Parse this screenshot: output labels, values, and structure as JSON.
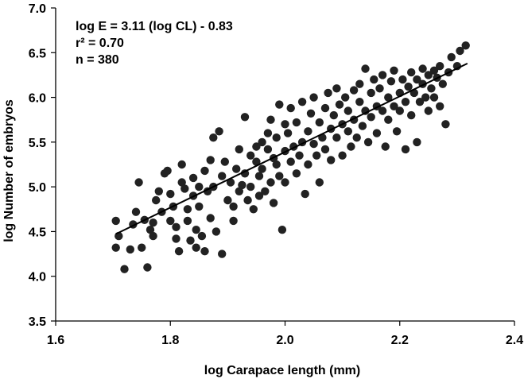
{
  "chart_data": {
    "type": "scatter",
    "title": "",
    "xlabel": "log Carapace length (mm)",
    "ylabel": "log Number of embryos",
    "xlim": [
      1.6,
      2.4
    ],
    "ylim": [
      3.5,
      7.0
    ],
    "xticks": [
      1.6,
      1.8,
      2.0,
      2.2,
      2.4
    ],
    "yticks": [
      3.5,
      4.0,
      4.5,
      5.0,
      5.5,
      6.0,
      6.5,
      7.0
    ],
    "xtick_labels": [
      "1.6",
      "1.8",
      "2.0",
      "2.2",
      "2.4"
    ],
    "ytick_labels": [
      "3.5",
      "4.0",
      "4.5",
      "5.0",
      "5.5",
      "6.0",
      "6.5",
      "7.0"
    ],
    "grid": false,
    "marker_color": "#222222",
    "annotations": [
      "log E = 3.11 (log CL) - 0.83",
      "r² = 0.70",
      "n = 380"
    ],
    "fit_line": {
      "slope": 3.11,
      "intercept": -0.83,
      "x_range": [
        1.705,
        2.318
      ]
    },
    "points": [
      [
        1.705,
        4.62
      ],
      [
        1.71,
        4.45
      ],
      [
        1.705,
        4.32
      ],
      [
        1.72,
        4.08
      ],
      [
        1.73,
        4.3
      ],
      [
        1.735,
        4.58
      ],
      [
        1.74,
        4.72
      ],
      [
        1.745,
        5.05
      ],
      [
        1.75,
        4.32
      ],
      [
        1.755,
        4.63
      ],
      [
        1.76,
        4.1
      ],
      [
        1.765,
        4.52
      ],
      [
        1.77,
        4.45
      ],
      [
        1.77,
        4.6
      ],
      [
        1.775,
        4.85
      ],
      [
        1.78,
        4.95
      ],
      [
        1.785,
        4.72
      ],
      [
        1.79,
        5.15
      ],
      [
        1.795,
        5.18
      ],
      [
        1.8,
        4.92
      ],
      [
        1.8,
        4.62
      ],
      [
        1.805,
        4.78
      ],
      [
        1.81,
        4.55
      ],
      [
        1.81,
        4.42
      ],
      [
        1.815,
        4.28
      ],
      [
        1.82,
        5.05
      ],
      [
        1.82,
        5.25
      ],
      [
        1.825,
        4.98
      ],
      [
        1.83,
        4.75
      ],
      [
        1.83,
        4.62
      ],
      [
        1.835,
        4.4
      ],
      [
        1.84,
        5.1
      ],
      [
        1.84,
        4.9
      ],
      [
        1.845,
        4.52
      ],
      [
        1.845,
        4.32
      ],
      [
        1.85,
        5.0
      ],
      [
        1.85,
        4.78
      ],
      [
        1.855,
        4.45
      ],
      [
        1.86,
        4.28
      ],
      [
        1.86,
        5.18
      ],
      [
        1.865,
        4.95
      ],
      [
        1.87,
        4.65
      ],
      [
        1.87,
        5.3
      ],
      [
        1.875,
        5.55
      ],
      [
        1.875,
        5.0
      ],
      [
        1.88,
        4.5
      ],
      [
        1.885,
        5.62
      ],
      [
        1.89,
        4.25
      ],
      [
        1.89,
        5.12
      ],
      [
        1.895,
        5.28
      ],
      [
        1.9,
        4.85
      ],
      [
        1.905,
        5.05
      ],
      [
        1.91,
        4.62
      ],
      [
        1.91,
        4.78
      ],
      [
        1.915,
        5.2
      ],
      [
        1.92,
        4.95
      ],
      [
        1.92,
        5.42
      ],
      [
        1.925,
        5.02
      ],
      [
        1.93,
        5.78
      ],
      [
        1.93,
        5.15
      ],
      [
        1.935,
        4.85
      ],
      [
        1.94,
        5.35
      ],
      [
        1.94,
        5.0
      ],
      [
        1.945,
        4.75
      ],
      [
        1.95,
        5.28
      ],
      [
        1.95,
        5.45
      ],
      [
        1.955,
        4.9
      ],
      [
        1.955,
        5.12
      ],
      [
        1.96,
        5.5
      ],
      [
        1.96,
        5.2
      ],
      [
        1.965,
        4.95
      ],
      [
        1.97,
        5.42
      ],
      [
        1.97,
        5.6
      ],
      [
        1.975,
        5.05
      ],
      [
        1.975,
        5.75
      ],
      [
        1.98,
        5.32
      ],
      [
        1.98,
        4.82
      ],
      [
        1.985,
        5.55
      ],
      [
        1.985,
        5.25
      ],
      [
        1.99,
        5.92
      ],
      [
        1.99,
        5.12
      ],
      [
        1.995,
        4.52
      ],
      [
        2.0,
        5.4
      ],
      [
        2.0,
        5.7
      ],
      [
        2.0,
        5.05
      ],
      [
        2.005,
        5.6
      ],
      [
        2.01,
        5.28
      ],
      [
        2.01,
        5.88
      ],
      [
        2.015,
        5.45
      ],
      [
        2.02,
        5.15
      ],
      [
        2.02,
        5.72
      ],
      [
        2.025,
        5.35
      ],
      [
        2.03,
        5.95
      ],
      [
        2.03,
        5.5
      ],
      [
        2.035,
        4.92
      ],
      [
        2.04,
        5.62
      ],
      [
        2.04,
        5.25
      ],
      [
        2.045,
        5.82
      ],
      [
        2.05,
        5.48
      ],
      [
        2.05,
        6.0
      ],
      [
        2.055,
        5.35
      ],
      [
        2.06,
        5.72
      ],
      [
        2.06,
        5.05
      ],
      [
        2.065,
        5.55
      ],
      [
        2.07,
        5.88
      ],
      [
        2.07,
        5.42
      ],
      [
        2.075,
        6.05
      ],
      [
        2.08,
        5.65
      ],
      [
        2.08,
        5.3
      ],
      [
        2.085,
        5.8
      ],
      [
        2.09,
        5.55
      ],
      [
        2.09,
        6.1
      ],
      [
        2.095,
        5.92
      ],
      [
        2.1,
        5.7
      ],
      [
        2.1,
        5.35
      ],
      [
        2.105,
        6.0
      ],
      [
        2.11,
        5.62
      ],
      [
        2.11,
        5.85
      ],
      [
        2.115,
        5.45
      ],
      [
        2.12,
        6.08
      ],
      [
        2.12,
        5.75
      ],
      [
        2.125,
        5.55
      ],
      [
        2.13,
        5.95
      ],
      [
        2.13,
        6.15
      ],
      [
        2.135,
        5.68
      ],
      [
        2.14,
        6.32
      ],
      [
        2.14,
        5.85
      ],
      [
        2.145,
        5.5
      ],
      [
        2.15,
        6.05
      ],
      [
        2.15,
        5.78
      ],
      [
        2.155,
        6.2
      ],
      [
        2.16,
        5.9
      ],
      [
        2.16,
        5.6
      ],
      [
        2.165,
        6.1
      ],
      [
        2.17,
        5.85
      ],
      [
        2.17,
        6.25
      ],
      [
        2.175,
        5.45
      ],
      [
        2.18,
        6.0
      ],
      [
        2.18,
        5.75
      ],
      [
        2.185,
        6.18
      ],
      [
        2.19,
        5.9
      ],
      [
        2.19,
        6.3
      ],
      [
        2.195,
        5.62
      ],
      [
        2.2,
        6.05
      ],
      [
        2.2,
        5.85
      ],
      [
        2.205,
        6.2
      ],
      [
        2.21,
        5.95
      ],
      [
        2.21,
        5.42
      ],
      [
        2.215,
        6.12
      ],
      [
        2.22,
        6.28
      ],
      [
        2.22,
        5.8
      ],
      [
        2.225,
        6.05
      ],
      [
        2.23,
        5.5
      ],
      [
        2.23,
        6.2
      ],
      [
        2.235,
        5.95
      ],
      [
        2.24,
        6.15
      ],
      [
        2.24,
        6.32
      ],
      [
        2.245,
        6.0
      ],
      [
        2.25,
        6.25
      ],
      [
        2.25,
        5.85
      ],
      [
        2.255,
        6.1
      ],
      [
        2.26,
        6.3
      ],
      [
        2.26,
        6.0
      ],
      [
        2.265,
        6.22
      ],
      [
        2.27,
        6.35
      ],
      [
        2.27,
        5.9
      ],
      [
        2.275,
        6.15
      ],
      [
        2.28,
        5.7
      ],
      [
        2.285,
        6.28
      ],
      [
        2.29,
        6.45
      ],
      [
        2.3,
        6.35
      ],
      [
        2.305,
        6.52
      ],
      [
        2.315,
        6.58
      ]
    ]
  }
}
